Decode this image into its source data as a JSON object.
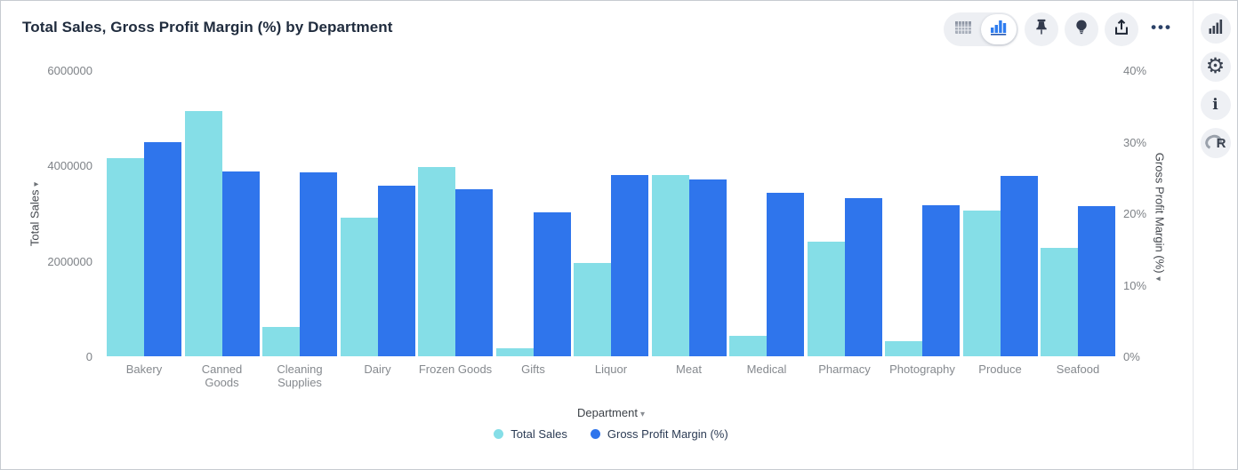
{
  "header": {
    "title": "Total Sales, Gross Profit Margin (%) by Department"
  },
  "toolbar": {
    "view_toggle": {
      "table_icon": "table-view-icon",
      "chart_icon": "chart-view-icon",
      "selected": "chart"
    },
    "pin_icon": "pin-icon",
    "insights_icon": "lightbulb-icon",
    "export_icon": "export-icon",
    "more_label": "•••"
  },
  "side_rail": {
    "chart_type_icon": "bar-chart-icon",
    "settings_icon": "gear-icon",
    "info_icon": "i",
    "r_logo_letter": "R"
  },
  "chart_data": {
    "type": "bar",
    "title": "Total Sales, Gross Profit Margin (%) by Department",
    "categories": [
      "Bakery",
      "Canned Goods",
      "Cleaning Supplies",
      "Dairy",
      "Frozen Goods",
      "Gifts",
      "Liquor",
      "Meat",
      "Medical",
      "Pharmacy",
      "Photography",
      "Produce",
      "Seafood"
    ],
    "series": [
      {
        "name": "Total Sales",
        "axis": "left",
        "color": "#85DEE7",
        "values": [
          4150000,
          5150000,
          620000,
          2900000,
          3970000,
          170000,
          1960000,
          3800000,
          430000,
          2400000,
          320000,
          3050000,
          2270000
        ]
      },
      {
        "name": "Gross Profit Margin (%)",
        "axis": "right",
        "color": "#2F75EC",
        "values": [
          30.0,
          25.8,
          25.7,
          23.9,
          23.4,
          20.1,
          25.3,
          24.7,
          22.9,
          22.1,
          21.1,
          25.2,
          21.0
        ]
      }
    ],
    "left_axis": {
      "title": "Total Sales",
      "max": 6000000,
      "ticks": [
        {
          "label": "6000000",
          "value": 6000000
        },
        {
          "label": "4000000",
          "value": 4000000
        },
        {
          "label": "2000000",
          "value": 2000000
        },
        {
          "label": "0",
          "value": 0
        }
      ]
    },
    "right_axis": {
      "title": "Gross Profit Margin (%)",
      "max": 40,
      "ticks": [
        {
          "label": "40%",
          "value": 40
        },
        {
          "label": "30%",
          "value": 30
        },
        {
          "label": "20%",
          "value": 20
        },
        {
          "label": "10%",
          "value": 10
        },
        {
          "label": "0%",
          "value": 0
        }
      ]
    },
    "x_axis": {
      "title": "Department"
    },
    "legend": [
      {
        "label": "Total Sales",
        "color": "#85DEE7"
      },
      {
        "label": "Gross Profit Margin (%)",
        "color": "#2F75EC"
      }
    ],
    "grid": false,
    "legend_position": "bottom"
  }
}
